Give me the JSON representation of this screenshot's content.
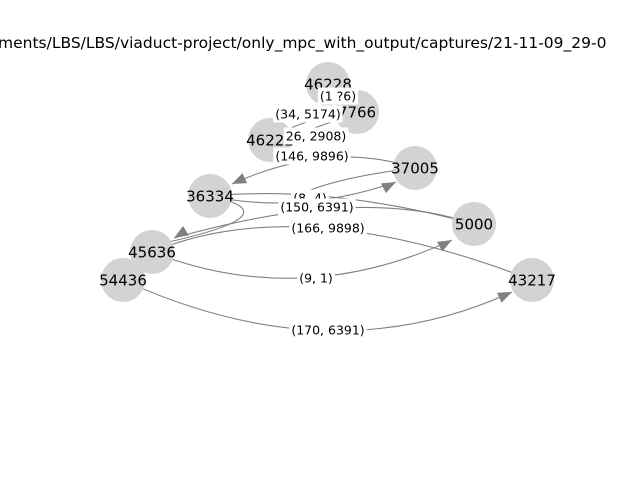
{
  "diagram": {
    "title": "ments/LBS/LBS/viaduct-project/only_mpc_with_output/captures/21-11-09_29-0",
    "colors": {
      "node": "#d3d3d3",
      "edge": "#808080",
      "text": "#000000",
      "background": "#ffffff"
    },
    "nodes": [
      {
        "id": "n46228",
        "label": "46228"
      },
      {
        "id": "n7766",
        "label": "7766"
      },
      {
        "id": "n46222",
        "label": "46222"
      },
      {
        "id": "n37005",
        "label": "37005"
      },
      {
        "id": "n36334",
        "label": "36334"
      },
      {
        "id": "n5000",
        "label": "5000"
      },
      {
        "id": "n45636",
        "label": "45636"
      },
      {
        "id": "n43217",
        "label": "43217"
      },
      {
        "id": "n54436",
        "label": "54436"
      }
    ],
    "edges": [
      {
        "id": "e1",
        "label": "(1 ?6)"
      },
      {
        "id": "e2",
        "label": "(34, 5174)"
      },
      {
        "id": "e3",
        "label": "26, 2908)"
      },
      {
        "id": "e4",
        "label": "(146, 9896)"
      },
      {
        "id": "e5",
        "label": "(8, 4)"
      },
      {
        "id": "e6",
        "label": "(150, 6391)"
      },
      {
        "id": "e7",
        "label": "(166, 9898)"
      },
      {
        "id": "e8",
        "label": "(9, 1)"
      },
      {
        "id": "e9",
        "label": "(170, 6391)"
      }
    ]
  }
}
